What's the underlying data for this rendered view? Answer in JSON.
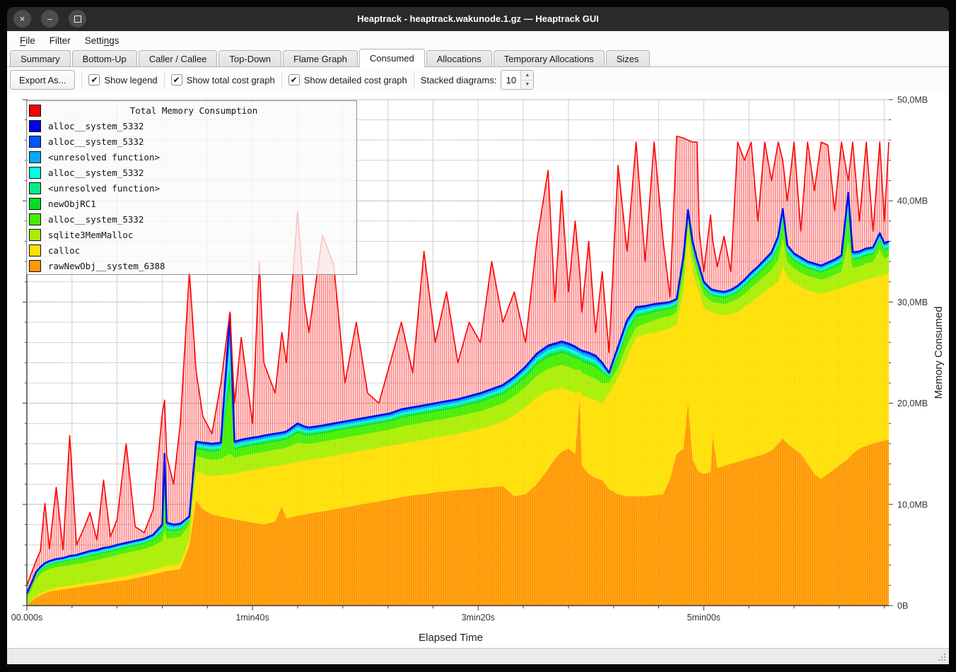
{
  "window": {
    "title": "Heaptrack - heaptrack.wakunode.1.gz — Heaptrack GUI",
    "buttons": [
      {
        "name": "close",
        "glyph": "×"
      },
      {
        "name": "minimize",
        "glyph": "–"
      },
      {
        "name": "maximize",
        "glyph": ""
      }
    ]
  },
  "menubar": {
    "items": [
      {
        "label": "File",
        "underline": 0
      },
      {
        "label": "Filter",
        "underline": null
      },
      {
        "label": "Settings",
        "underline": 5
      }
    ]
  },
  "tabs": {
    "active_index": 5,
    "items": [
      "Summary",
      "Bottom-Up",
      "Caller / Callee",
      "Top-Down",
      "Flame Graph",
      "Consumed",
      "Allocations",
      "Temporary Allocations",
      "Sizes"
    ]
  },
  "toolbar": {
    "export_button": "Export As...",
    "checkboxes": [
      {
        "label": "Show legend",
        "checked": true
      },
      {
        "label": "Show total cost graph",
        "checked": true
      },
      {
        "label": "Show detailed cost graph",
        "checked": true
      }
    ],
    "stacked_diagrams_label": "Stacked diagrams:",
    "stacked_diagrams_value": "10"
  },
  "chart_data": {
    "type": "area",
    "title": "Total Memory Consumption",
    "xlabel": "Elapsed Time",
    "ylabel": "Memory Consumed",
    "ylim": [
      0,
      50
    ],
    "xlim_seconds": [
      0,
      382
    ],
    "grid": true,
    "legend_position": "top-left",
    "x_ticks": [
      {
        "t": 0,
        "label": "00.000s"
      },
      {
        "t": 100,
        "label": "1min40s"
      },
      {
        "t": 200,
        "label": "3min20s"
      },
      {
        "t": 300,
        "label": "5min00s"
      }
    ],
    "x_minor_step_seconds": 20,
    "y_ticks": [
      {
        "mb": 0,
        "label": "0B"
      },
      {
        "mb": 10,
        "label": "10,0MB"
      },
      {
        "mb": 20,
        "label": "20,0MB"
      },
      {
        "mb": 30,
        "label": "30,0MB"
      },
      {
        "mb": 40,
        "label": "40,0MB"
      },
      {
        "mb": 50,
        "label": "50,0MB"
      }
    ],
    "y_minor_step_mb": 2,
    "legend": [
      {
        "label": "Total Memory Consumption",
        "color": "#ff0000",
        "role": "total"
      },
      {
        "label": "alloc__system_5332",
        "color": "#0000ee"
      },
      {
        "label": "alloc__system_5332",
        "color": "#0055ff"
      },
      {
        "label": "<unresolved function>",
        "color": "#00aaff"
      },
      {
        "label": "alloc__system_5332",
        "color": "#00ffdd"
      },
      {
        "label": "<unresolved function>",
        "color": "#00ee88"
      },
      {
        "label": "newObjRC1",
        "color": "#00dd22"
      },
      {
        "label": "alloc__system_5332",
        "color": "#44ee00"
      },
      {
        "label": "sqlite3MemMalloc",
        "color": "#aaee00"
      },
      {
        "label": "calloc",
        "color": "#ffe000"
      },
      {
        "label": "rawNewObj__system_6388",
        "color": "#ff9900"
      }
    ],
    "series_note": "stacked area boundaries in MB over seconds; total is the red hatched line",
    "samples": {
      "t_seconds": [
        0,
        2,
        4,
        6,
        8,
        10,
        13,
        16,
        19,
        22,
        25,
        28,
        31,
        34,
        37,
        40,
        44,
        48,
        52,
        56,
        60,
        61,
        62,
        65,
        68,
        72,
        75,
        78,
        82,
        86,
        90,
        92,
        95,
        100,
        103,
        105,
        110,
        113,
        115,
        120,
        123,
        125,
        131,
        136,
        141,
        146,
        151,
        156,
        161,
        166,
        171,
        176,
        181,
        186,
        191,
        196,
        201,
        206,
        211,
        216,
        221,
        226,
        231,
        234,
        237,
        240,
        243,
        245,
        246,
        249,
        252,
        255,
        258,
        262,
        266,
        270,
        274,
        278,
        282,
        285,
        288,
        291,
        293,
        295,
        297,
        298,
        300,
        303,
        304,
        306,
        309,
        312,
        315,
        318,
        321,
        324,
        327,
        330,
        333,
        335,
        337,
        340,
        343,
        346,
        349,
        352,
        355,
        358,
        361,
        364,
        366,
        369,
        372,
        375,
        378,
        380,
        382
      ],
      "rawNewObj_top": [
        0.1,
        0.4,
        0.8,
        1.0,
        1.2,
        1.4,
        1.5,
        1.6,
        1.7,
        1.8,
        1.9,
        2.0,
        2.1,
        2.2,
        2.3,
        2.4,
        2.5,
        2.7,
        2.9,
        3.1,
        3.3,
        3.4,
        3.4,
        3.5,
        3.6,
        5.9,
        10.4,
        9.5,
        9.0,
        8.8,
        8.6,
        8.5,
        8.4,
        8.2,
        8.1,
        8.0,
        8.3,
        9.8,
        8.6,
        8.9,
        9.0,
        9.1,
        9.3,
        9.5,
        9.7,
        9.9,
        10.1,
        10.3,
        10.5,
        10.7,
        10.9,
        11.0,
        11.2,
        11.3,
        11.4,
        11.5,
        11.6,
        11.7,
        11.8,
        10.8,
        11.0,
        12.0,
        13.5,
        14.5,
        15.2,
        15.5,
        15.0,
        20.4,
        13.8,
        13.0,
        12.6,
        12.4,
        11.5,
        11.0,
        10.8,
        10.8,
        10.8,
        10.9,
        11.0,
        12.5,
        15.0,
        15.5,
        20.1,
        14.5,
        13.5,
        13.2,
        13.0,
        13.2,
        16.7,
        13.6,
        13.8,
        14.0,
        14.2,
        14.4,
        14.6,
        14.8,
        15.0,
        15.3,
        16.0,
        16.5,
        16.0,
        15.5,
        15.0,
        14.0,
        13.0,
        12.5,
        13.0,
        13.5,
        14.0,
        14.5,
        15.0,
        15.5,
        15.8,
        16.0,
        16.2,
        16.3,
        16.4
      ],
      "calloc_top": [
        0.15,
        0.5,
        0.95,
        1.2,
        1.4,
        1.6,
        1.75,
        1.9,
        2.0,
        2.1,
        2.2,
        2.3,
        2.4,
        2.5,
        2.6,
        2.8,
        2.9,
        3.1,
        3.3,
        3.5,
        3.8,
        3.9,
        3.9,
        4.0,
        4.2,
        6.5,
        13.3,
        13.0,
        12.8,
        12.9,
        13.0,
        13.0,
        13.2,
        13.4,
        13.5,
        13.6,
        13.8,
        13.9,
        14.0,
        14.2,
        14.3,
        14.4,
        14.6,
        14.8,
        15.0,
        15.2,
        15.4,
        15.6,
        15.8,
        16.0,
        16.2,
        16.4,
        16.6,
        16.8,
        17.0,
        17.2,
        17.5,
        17.8,
        18.2,
        18.8,
        19.6,
        20.6,
        21.2,
        21.4,
        21.5,
        21.3,
        21.0,
        21.2,
        20.8,
        20.5,
        20.3,
        20.0,
        21.0,
        22.5,
        24.5,
        26.5,
        26.8,
        27.0,
        27.2,
        27.4,
        27.8,
        31.0,
        36.5,
        33.0,
        31.5,
        31.0,
        29.5,
        29.0,
        29.0,
        28.8,
        28.7,
        28.8,
        29.0,
        29.5,
        30.0,
        30.5,
        31.0,
        31.5,
        32.0,
        33.5,
        32.5,
        31.8,
        31.5,
        31.2,
        31.0,
        30.8,
        31.0,
        31.2,
        31.4,
        31.6,
        31.8,
        32.0,
        32.2,
        32.4,
        32.6,
        32.7,
        32.8
      ],
      "sqlite3MemMalloc_top": [
        0.5,
        1.6,
        2.6,
        3.1,
        3.4,
        3.6,
        3.8,
        3.9,
        4.0,
        4.1,
        4.2,
        4.4,
        4.5,
        4.7,
        4.8,
        5.0,
        5.2,
        5.4,
        5.6,
        5.9,
        6.4,
        7.5,
        6.6,
        6.7,
        6.8,
        8.0,
        14.8,
        14.6,
        14.4,
        14.5,
        15.0,
        14.6,
        14.8,
        15.0,
        15.1,
        15.2,
        15.4,
        15.5,
        15.6,
        16.1,
        16.0,
        16.0,
        16.2,
        16.4,
        16.6,
        16.8,
        17.0,
        17.2,
        17.4,
        17.7,
        17.9,
        18.1,
        18.3,
        18.5,
        18.7,
        19.0,
        19.2,
        19.6,
        20.0,
        20.7,
        21.6,
        22.7,
        23.4,
        23.6,
        23.8,
        23.6,
        23.3,
        23.3,
        23.0,
        22.7,
        22.4,
        22.0,
        22.0,
        23.5,
        25.8,
        27.5,
        27.9,
        28.2,
        28.5,
        28.6,
        29.0,
        32.7,
        37.8,
        34.5,
        32.8,
        32.2,
        30.7,
        30.1,
        30.0,
        29.9,
        29.8,
        30.0,
        30.3,
        30.8,
        31.4,
        32.0,
        32.6,
        33.2,
        34.2,
        36.3,
        34.0,
        33.3,
        32.9,
        32.6,
        32.4,
        32.2,
        32.4,
        32.7,
        33.0,
        36.0,
        33.4,
        33.5,
        33.8,
        34.0,
        35.2,
        34.3,
        34.5
      ],
      "stack_top": [
        1.2,
        2.2,
        3.3,
        3.8,
        4.2,
        4.4,
        4.6,
        4.7,
        4.9,
        5.0,
        5.2,
        5.4,
        5.5,
        5.7,
        5.8,
        6.0,
        6.2,
        6.4,
        6.6,
        7.0,
        8.0,
        15.0,
        8.2,
        8.0,
        8.1,
        8.8,
        16.2,
        16.1,
        16.0,
        16.1,
        28.8,
        16.2,
        16.4,
        16.6,
        16.7,
        16.8,
        17.0,
        17.1,
        17.2,
        18.0,
        17.7,
        17.6,
        17.8,
        18.0,
        18.2,
        18.4,
        18.6,
        18.8,
        19.0,
        19.4,
        19.6,
        19.8,
        20.0,
        20.2,
        20.4,
        20.7,
        21.0,
        21.4,
        21.8,
        22.6,
        23.6,
        24.9,
        25.7,
        25.9,
        26.1,
        25.9,
        25.6,
        25.3,
        25.2,
        25.0,
        24.7,
        24.0,
        23.0,
        25.6,
        28.2,
        29.5,
        29.6,
        29.8,
        29.9,
        30.0,
        30.3,
        34.5,
        39.1,
        36.0,
        34.2,
        33.5,
        32.0,
        31.3,
        31.2,
        31.1,
        31.0,
        31.2,
        31.6,
        32.2,
        32.9,
        33.5,
        34.2,
        34.9,
        36.5,
        39.2,
        35.6,
        34.8,
        34.4,
        34.0,
        33.8,
        33.6,
        33.9,
        34.2,
        34.6,
        40.8,
        34.9,
        35.0,
        35.3,
        35.4,
        36.8,
        35.8,
        36.0
      ],
      "total": [
        2.0,
        3.2,
        4.4,
        5.4,
        10.1,
        5.6,
        11.7,
        5.5,
        16.8,
        6.0,
        7.5,
        9.2,
        6.5,
        12.4,
        6.8,
        8.5,
        16.0,
        7.8,
        7.2,
        9.5,
        19.0,
        20.3,
        14.8,
        12.0,
        18.0,
        33.0,
        23.2,
        18.7,
        17.0,
        22.0,
        29.0,
        20.0,
        26.5,
        18.0,
        34.0,
        24.0,
        21.0,
        27.0,
        24.0,
        39.0,
        30.0,
        27.0,
        36.6,
        33.7,
        22.0,
        28.0,
        21.0,
        20.0,
        24.0,
        28.0,
        23.0,
        35.0,
        26.0,
        31.0,
        24.0,
        28.0,
        26.0,
        34.0,
        28.0,
        31.0,
        26.0,
        36.0,
        43.0,
        30.0,
        41.0,
        31.0,
        38.0,
        33.0,
        29.0,
        36.0,
        27.0,
        33.0,
        25.0,
        43.5,
        35.0,
        45.8,
        34.0,
        45.8,
        36.0,
        30.5,
        46.4,
        46.2,
        46.0,
        45.8,
        45.8,
        37.0,
        33.0,
        38.6,
        36.0,
        33.5,
        36.5,
        33.0,
        45.8,
        44.0,
        45.8,
        38.0,
        45.8,
        42.0,
        45.8,
        44.0,
        40.0,
        45.8,
        37.0,
        45.8,
        41.0,
        45.8,
        45.5,
        39.0,
        45.8,
        42.0,
        45.8,
        38.0,
        45.8,
        37.0,
        45.8,
        38.0,
        45.8
      ]
    },
    "thin_band_fractions": {
      "alloc__system_5332_green": 0.5,
      "newObjRC1": 0.09,
      "unresolved_function_spring": 0.1,
      "alloc__system_5332_cyan": 0.11,
      "unresolved_function_lightblue": 0.11,
      "alloc__system_5332_blue": 0.05,
      "alloc__system_5332_darkblue": 0.04
    },
    "colors": {
      "total_line": "#ff0000",
      "total_hatch_bg": "rgba(255,70,70,0.25)",
      "total_hatch_stripe": "rgba(255,0,0,0.5)",
      "stack_top_line": "#0011ee",
      "grid_major": "#c0c0c0",
      "grid_minor": "#d4d4d4",
      "axis": "#3c3c3c",
      "tick_text": "#333333",
      "plot_bg": "#ffffff"
    }
  },
  "status_bar": {
    "text": ""
  }
}
